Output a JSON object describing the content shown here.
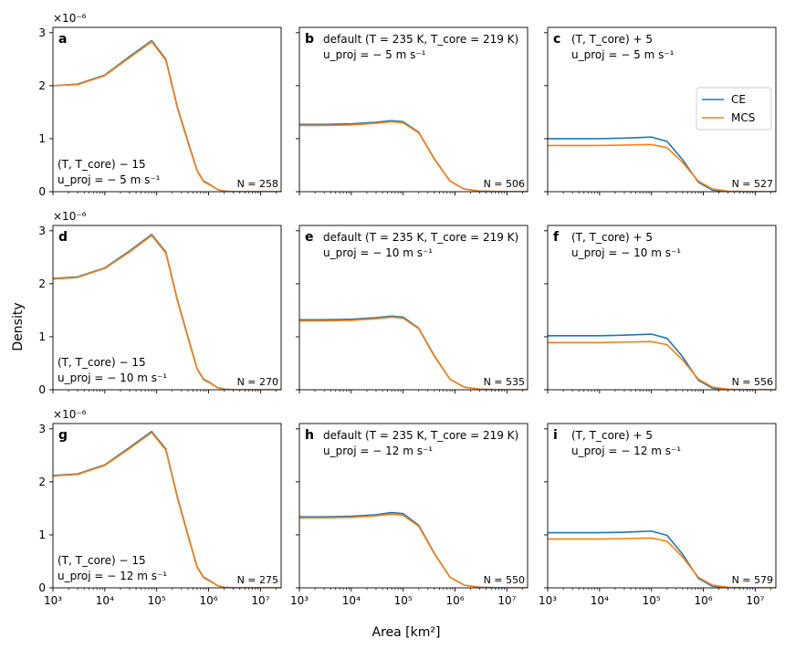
{
  "figure": {
    "ylabel": "Density",
    "xlabel": "Area [km²]",
    "legend": {
      "placement": "right, panel c",
      "entries": [
        {
          "name": "CE",
          "color": "#1f77b4"
        },
        {
          "name": "MCS",
          "color": "#ff7f0e"
        }
      ]
    },
    "xscale": "log",
    "xlim": [
      1000,
      25000000
    ],
    "xticks": [
      "10³",
      "10⁴",
      "10⁵",
      "10⁶",
      "10⁷"
    ],
    "ylim": [
      0,
      3.1e-06
    ],
    "yticks": [
      "0",
      "1",
      "2",
      "3"
    ],
    "yscale_label": "×10⁻⁶",
    "grid": false
  },
  "chart_data": [
    {
      "id": "a",
      "type": "line",
      "label": "a",
      "annotation_line1": "(T, T_core) − 15",
      "annotation_line2": "u_proj = − 5 m s⁻¹",
      "n_label": "N = 258",
      "series": [
        {
          "name": "CE",
          "x": [
            1000,
            3000,
            10000,
            30000,
            80000,
            150000,
            250000,
            400000,
            600000,
            800000,
            1000000,
            1500000,
            2000000,
            3000000,
            10000000,
            25000000
          ],
          "values": [
            2e-06,
            2.03e-06,
            2.2e-06,
            2.55e-06,
            2.85e-06,
            2.5e-06,
            1.6e-06,
            9.5e-07,
            4e-07,
            2e-07,
            1.5e-07,
            4e-08,
            1e-08,
            0,
            0,
            0
          ]
        },
        {
          "name": "MCS",
          "x": [
            1000,
            3000,
            10000,
            30000,
            80000,
            150000,
            250000,
            400000,
            600000,
            800000,
            1000000,
            1500000,
            2000000,
            3000000,
            10000000,
            25000000
          ],
          "values": [
            2e-06,
            2.02e-06,
            2.19e-06,
            2.53e-06,
            2.83e-06,
            2.48e-06,
            1.58e-06,
            9.3e-07,
            3.9e-07,
            1.9e-07,
            1.4e-07,
            4e-08,
            1e-08,
            0,
            0,
            0
          ]
        }
      ]
    },
    {
      "id": "b",
      "type": "line",
      "label": "b",
      "annotation_line1": "default (T = 235 K, T_core = 219 K)",
      "annotation_line2": "u_proj = − 5 m s⁻¹",
      "n_label": "N = 506",
      "series": [
        {
          "name": "CE",
          "x": [
            1000,
            3000,
            10000,
            30000,
            60000,
            100000,
            200000,
            400000,
            800000,
            1500000,
            3000000,
            10000000,
            25000000
          ],
          "values": [
            1.27e-06,
            1.27e-06,
            1.28e-06,
            1.31e-06,
            1.34e-06,
            1.32e-06,
            1.12e-06,
            6.2e-07,
            2e-07,
            5e-08,
            1e-08,
            0,
            0
          ]
        },
        {
          "name": "MCS",
          "x": [
            1000,
            3000,
            10000,
            30000,
            60000,
            100000,
            200000,
            400000,
            800000,
            1500000,
            3000000,
            10000000,
            25000000
          ],
          "values": [
            1.25e-06,
            1.25e-06,
            1.26e-06,
            1.29e-06,
            1.32e-06,
            1.3e-06,
            1.11e-06,
            6.1e-07,
            2e-07,
            5e-08,
            1e-08,
            0,
            0
          ]
        }
      ]
    },
    {
      "id": "c",
      "type": "line",
      "label": "c",
      "annotation_line1": "(T, T_core) + 5",
      "annotation_line2": "u_proj = − 5 m s⁻¹",
      "n_label": "N = 527",
      "series": [
        {
          "name": "CE",
          "x": [
            1000,
            3000,
            10000,
            30000,
            100000,
            200000,
            400000,
            800000,
            1500000,
            3000000,
            10000000,
            25000000
          ],
          "values": [
            1e-06,
            1e-06,
            1e-06,
            1.01e-06,
            1.03e-06,
            9.5e-07,
            6e-07,
            1.8e-07,
            3e-08,
            5e-09,
            0,
            0
          ]
        },
        {
          "name": "MCS",
          "x": [
            1000,
            3000,
            10000,
            30000,
            100000,
            200000,
            400000,
            800000,
            1500000,
            3000000,
            10000000,
            25000000
          ],
          "values": [
            8.7e-07,
            8.7e-07,
            8.7e-07,
            8.8e-07,
            8.9e-07,
            8.3e-07,
            5.5e-07,
            2e-07,
            5e-08,
            1e-08,
            0,
            0
          ]
        }
      ]
    },
    {
      "id": "d",
      "type": "line",
      "label": "d",
      "annotation_line1": "(T, T_core) − 15",
      "annotation_line2": "u_proj = − 10 m s⁻¹",
      "n_label": "N = 270",
      "series": [
        {
          "name": "CE",
          "x": [
            1000,
            3000,
            10000,
            30000,
            80000,
            150000,
            250000,
            400000,
            600000,
            800000,
            1000000,
            1500000,
            2000000,
            3000000,
            10000000,
            25000000
          ],
          "values": [
            2.1e-06,
            2.13e-06,
            2.3e-06,
            2.62e-06,
            2.93e-06,
            2.6e-06,
            1.7e-06,
            1e-06,
            4e-07,
            2e-07,
            1.5e-07,
            4e-08,
            1e-08,
            0,
            0,
            0
          ]
        },
        {
          "name": "MCS",
          "x": [
            1000,
            3000,
            10000,
            30000,
            80000,
            150000,
            250000,
            400000,
            600000,
            800000,
            1000000,
            1500000,
            2000000,
            3000000,
            10000000,
            25000000
          ],
          "values": [
            2.09e-06,
            2.12e-06,
            2.29e-06,
            2.6e-06,
            2.91e-06,
            2.58e-06,
            1.68e-06,
            9.8e-07,
            3.9e-07,
            1.9e-07,
            1.4e-07,
            4e-08,
            1e-08,
            0,
            0,
            0
          ]
        }
      ]
    },
    {
      "id": "e",
      "type": "line",
      "label": "e",
      "annotation_line1": "default (T = 235 K, T_core = 219 K)",
      "annotation_line2": "u_proj = − 10 m s⁻¹",
      "n_label": "N = 535",
      "series": [
        {
          "name": "CE",
          "x": [
            1000,
            3000,
            10000,
            30000,
            60000,
            100000,
            200000,
            400000,
            800000,
            1500000,
            3000000,
            10000000,
            25000000
          ],
          "values": [
            1.32e-06,
            1.32e-06,
            1.33e-06,
            1.36e-06,
            1.39e-06,
            1.37e-06,
            1.16e-06,
            6.4e-07,
            2e-07,
            5e-08,
            1e-08,
            0,
            0
          ]
        },
        {
          "name": "MCS",
          "x": [
            1000,
            3000,
            10000,
            30000,
            60000,
            100000,
            200000,
            400000,
            800000,
            1500000,
            3000000,
            10000000,
            25000000
          ],
          "values": [
            1.3e-06,
            1.3e-06,
            1.31e-06,
            1.34e-06,
            1.37e-06,
            1.35e-06,
            1.15e-06,
            6.3e-07,
            2e-07,
            5e-08,
            1e-08,
            0,
            0
          ]
        }
      ]
    },
    {
      "id": "f",
      "type": "line",
      "label": "f",
      "annotation_line1": "(T, T_core) + 5",
      "annotation_line2": "u_proj = − 10 m s⁻¹",
      "n_label": "N = 556",
      "series": [
        {
          "name": "CE",
          "x": [
            1000,
            3000,
            10000,
            30000,
            100000,
            200000,
            400000,
            800000,
            1500000,
            3000000,
            10000000,
            25000000
          ],
          "values": [
            1.02e-06,
            1.02e-06,
            1.02e-06,
            1.03e-06,
            1.05e-06,
            9.7e-07,
            6.2e-07,
            1.8e-07,
            3e-08,
            5e-09,
            0,
            0
          ]
        },
        {
          "name": "MCS",
          "x": [
            1000,
            3000,
            10000,
            30000,
            100000,
            200000,
            400000,
            800000,
            1500000,
            3000000,
            10000000,
            25000000
          ],
          "values": [
            8.9e-07,
            8.9e-07,
            8.9e-07,
            9e-07,
            9.1e-07,
            8.5e-07,
            5.6e-07,
            2e-07,
            5e-08,
            1e-08,
            0,
            0
          ]
        }
      ]
    },
    {
      "id": "g",
      "type": "line",
      "label": "g",
      "annotation_line1": "(T, T_core) − 15",
      "annotation_line2": "u_proj = − 12 m s⁻¹",
      "n_label": "N = 275",
      "series": [
        {
          "name": "CE",
          "x": [
            1000,
            3000,
            10000,
            30000,
            80000,
            150000,
            250000,
            400000,
            600000,
            800000,
            1000000,
            1500000,
            2000000,
            3000000,
            10000000,
            25000000
          ],
          "values": [
            2.12e-06,
            2.15e-06,
            2.32e-06,
            2.65e-06,
            2.95e-06,
            2.62e-06,
            1.72e-06,
            1e-06,
            4e-07,
            2e-07,
            1.5e-07,
            4e-08,
            1e-08,
            0,
            0,
            0
          ]
        },
        {
          "name": "MCS",
          "x": [
            1000,
            3000,
            10000,
            30000,
            80000,
            150000,
            250000,
            400000,
            600000,
            800000,
            1000000,
            1500000,
            2000000,
            3000000,
            10000000,
            25000000
          ],
          "values": [
            2.11e-06,
            2.14e-06,
            2.31e-06,
            2.63e-06,
            2.93e-06,
            2.6e-06,
            1.7e-06,
            9.8e-07,
            3.9e-07,
            1.9e-07,
            1.4e-07,
            4e-08,
            1e-08,
            0,
            0,
            0
          ]
        }
      ]
    },
    {
      "id": "h",
      "type": "line",
      "label": "h",
      "annotation_line1": "default (T = 235 K, T_core = 219 K)",
      "annotation_line2": "u_proj = − 12 m s⁻¹",
      "n_label": "N = 550",
      "series": [
        {
          "name": "CE",
          "x": [
            1000,
            3000,
            10000,
            30000,
            60000,
            100000,
            200000,
            400000,
            800000,
            1500000,
            3000000,
            10000000,
            25000000
          ],
          "values": [
            1.34e-06,
            1.34e-06,
            1.35e-06,
            1.38e-06,
            1.42e-06,
            1.4e-06,
            1.18e-06,
            6.5e-07,
            2e-07,
            5e-08,
            1e-08,
            0,
            0
          ]
        },
        {
          "name": "MCS",
          "x": [
            1000,
            3000,
            10000,
            30000,
            60000,
            100000,
            200000,
            400000,
            800000,
            1500000,
            3000000,
            10000000,
            25000000
          ],
          "values": [
            1.32e-06,
            1.32e-06,
            1.33e-06,
            1.36e-06,
            1.39e-06,
            1.37e-06,
            1.16e-06,
            6.4e-07,
            2e-07,
            5e-08,
            1e-08,
            0,
            0
          ]
        }
      ]
    },
    {
      "id": "i",
      "type": "line",
      "label": "i",
      "annotation_line1": "(T, T_core) + 5",
      "annotation_line2": "u_proj = − 12 m s⁻¹",
      "n_label": "N = 579",
      "series": [
        {
          "name": "CE",
          "x": [
            1000,
            3000,
            10000,
            30000,
            100000,
            200000,
            400000,
            800000,
            1500000,
            3000000,
            10000000,
            25000000
          ],
          "values": [
            1.04e-06,
            1.04e-06,
            1.04e-06,
            1.05e-06,
            1.07e-06,
            9.9e-07,
            6.3e-07,
            1.8e-07,
            3e-08,
            5e-09,
            0,
            0
          ]
        },
        {
          "name": "MCS",
          "x": [
            1000,
            3000,
            10000,
            30000,
            100000,
            200000,
            400000,
            800000,
            1500000,
            3000000,
            10000000,
            25000000
          ],
          "values": [
            9.2e-07,
            9.2e-07,
            9.2e-07,
            9.3e-07,
            9.4e-07,
            8.8e-07,
            5.8e-07,
            2e-07,
            5e-08,
            1e-08,
            0,
            0
          ]
        }
      ]
    }
  ]
}
